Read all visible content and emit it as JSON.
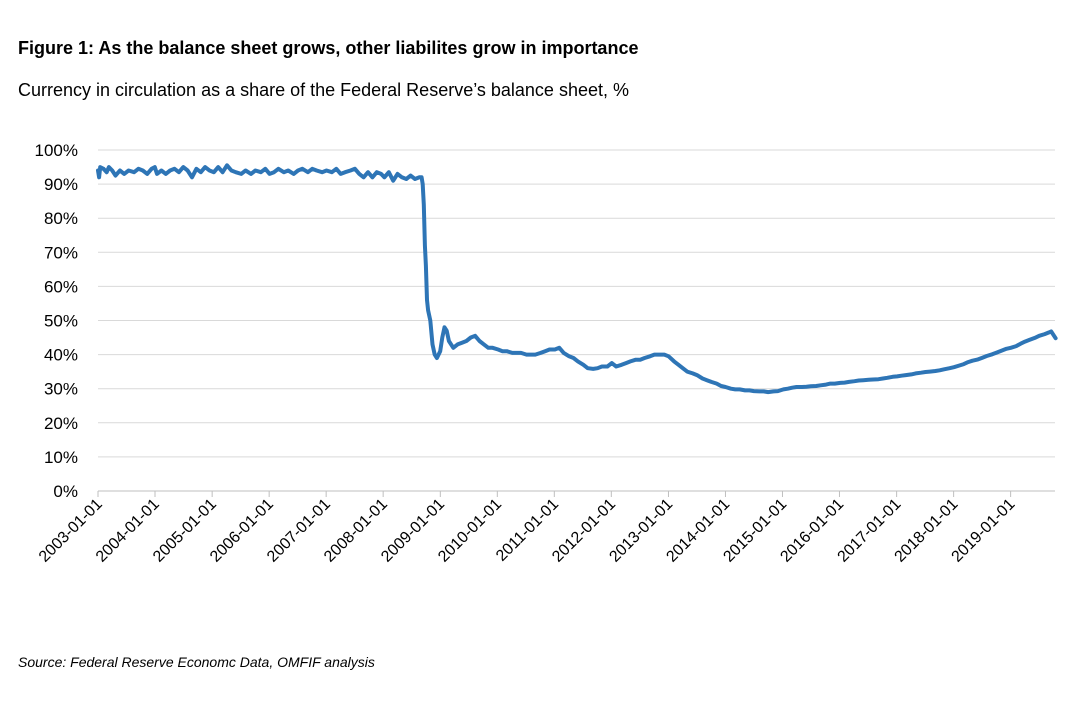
{
  "header": {
    "title": "Figure 1: As the balance sheet grows, other liabilites grow in importance",
    "subtitle": "Currency in circulation as a share of the Federal Reserve’s balance sheet, %"
  },
  "footer": {
    "source": "Source: Federal Reserve Economc Data, OMFIF analysis"
  },
  "chart_data": {
    "type": "line",
    "title": "Figure 1: As the balance sheet grows, other liabilites grow in importance",
    "subtitle": "Currency in circulation as a share of the Federal Reserve’s balance sheet, %",
    "xlabel": "",
    "ylabel": "",
    "x_ticks": [
      "2003-01-01",
      "2004-01-01",
      "2005-01-01",
      "2006-01-01",
      "2007-01-01",
      "2008-01-01",
      "2009-01-01",
      "2010-01-01",
      "2011-01-01",
      "2012-01-01",
      "2013-01-01",
      "2014-01-01",
      "2015-01-01",
      "2016-01-01",
      "2017-01-01",
      "2018-01-01",
      "2019-01-01"
    ],
    "y_ticks": [
      "0%",
      "10%",
      "20%",
      "30%",
      "40%",
      "50%",
      "60%",
      "70%",
      "80%",
      "90%",
      "100%"
    ],
    "ylim": [
      0,
      100
    ],
    "xlim": [
      "2003-01-01",
      "2019-10-16"
    ],
    "grid": true,
    "legend": "none",
    "line_color": "#2e75b6",
    "series": [
      {
        "values": [
          [
            "2003-01-01",
            94
          ],
          [
            "2003-01-08",
            92
          ],
          [
            "2003-01-15",
            95
          ],
          [
            "2003-02-05",
            94.5
          ],
          [
            "2003-02-26",
            93.5
          ],
          [
            "2003-03-12",
            95
          ],
          [
            "2003-04-02",
            94
          ],
          [
            "2003-04-23",
            92.5
          ],
          [
            "2003-05-21",
            94
          ],
          [
            "2003-06-18",
            93
          ],
          [
            "2003-07-16",
            94
          ],
          [
            "2003-08-20",
            93.5
          ],
          [
            "2003-09-17",
            94.5
          ],
          [
            "2003-10-15",
            94
          ],
          [
            "2003-11-12",
            93
          ],
          [
            "2003-12-10",
            94.5
          ],
          [
            "2003-12-31",
            95
          ],
          [
            "2004-01-14",
            93
          ],
          [
            "2004-02-11",
            94
          ],
          [
            "2004-03-10",
            93
          ],
          [
            "2004-04-07",
            94
          ],
          [
            "2004-05-05",
            94.5
          ],
          [
            "2004-06-02",
            93.5
          ],
          [
            "2004-06-30",
            95
          ],
          [
            "2004-07-28",
            94
          ],
          [
            "2004-08-25",
            92
          ],
          [
            "2004-09-22",
            94.5
          ],
          [
            "2004-10-20",
            93.5
          ],
          [
            "2004-11-17",
            95
          ],
          [
            "2004-12-15",
            94
          ],
          [
            "2005-01-12",
            93.5
          ],
          [
            "2005-02-09",
            95
          ],
          [
            "2005-03-09",
            93.5
          ],
          [
            "2005-04-06",
            95.5
          ],
          [
            "2005-05-04",
            94
          ],
          [
            "2005-06-01",
            93.5
          ],
          [
            "2005-07-06",
            93
          ],
          [
            "2005-08-03",
            94
          ],
          [
            "2005-09-07",
            93
          ],
          [
            "2005-10-05",
            94
          ],
          [
            "2005-11-09",
            93.5
          ],
          [
            "2005-12-07",
            94.5
          ],
          [
            "2006-01-04",
            93
          ],
          [
            "2006-02-01",
            93.5
          ],
          [
            "2006-03-01",
            94.5
          ],
          [
            "2006-04-05",
            93.5
          ],
          [
            "2006-05-03",
            94
          ],
          [
            "2006-06-07",
            93
          ],
          [
            "2006-07-05",
            94
          ],
          [
            "2006-08-02",
            94.5
          ],
          [
            "2006-09-06",
            93.5
          ],
          [
            "2006-10-04",
            94.5
          ],
          [
            "2006-11-01",
            94
          ],
          [
            "2006-12-06",
            93.5
          ],
          [
            "2007-01-03",
            94
          ],
          [
            "2007-02-07",
            93.5
          ],
          [
            "2007-03-07",
            94.5
          ],
          [
            "2007-04-04",
            93
          ],
          [
            "2007-05-02",
            93.5
          ],
          [
            "2007-06-06",
            94
          ],
          [
            "2007-07-04",
            94.5
          ],
          [
            "2007-08-01",
            93
          ],
          [
            "2007-08-29",
            92
          ],
          [
            "2007-09-26",
            93.5
          ],
          [
            "2007-10-24",
            92
          ],
          [
            "2007-11-21",
            93.5
          ],
          [
            "2007-12-19",
            93
          ],
          [
            "2008-01-09",
            92
          ],
          [
            "2008-02-06",
            93.5
          ],
          [
            "2008-03-05",
            91
          ],
          [
            "2008-04-02",
            93
          ],
          [
            "2008-04-30",
            92
          ],
          [
            "2008-05-28",
            91.5
          ],
          [
            "2008-06-25",
            92.5
          ],
          [
            "2008-07-23",
            91.5
          ],
          [
            "2008-08-20",
            92
          ],
          [
            "2008-09-03",
            92
          ],
          [
            "2008-09-10",
            90
          ],
          [
            "2008-09-17",
            84
          ],
          [
            "2008-09-24",
            72
          ],
          [
            "2008-10-01",
            66
          ],
          [
            "2008-10-08",
            56
          ],
          [
            "2008-10-15",
            53
          ],
          [
            "2008-10-29",
            50
          ],
          [
            "2008-11-12",
            43
          ],
          [
            "2008-11-26",
            40
          ],
          [
            "2008-12-10",
            39
          ],
          [
            "2008-12-31",
            41
          ],
          [
            "2009-01-14",
            45
          ],
          [
            "2009-01-28",
            48
          ],
          [
            "2009-02-11",
            47
          ],
          [
            "2009-02-25",
            44
          ],
          [
            "2009-03-11",
            43
          ],
          [
            "2009-03-25",
            42
          ],
          [
            "2009-04-22",
            43
          ],
          [
            "2009-05-20",
            43.5
          ],
          [
            "2009-06-17",
            44
          ],
          [
            "2009-07-15",
            45
          ],
          [
            "2009-08-12",
            45.5
          ],
          [
            "2009-09-09",
            44
          ],
          [
            "2009-10-07",
            43
          ],
          [
            "2009-11-04",
            42
          ],
          [
            "2009-12-02",
            42
          ],
          [
            "2010-01-06",
            41.5
          ],
          [
            "2010-02-03",
            41
          ],
          [
            "2010-03-03",
            41
          ],
          [
            "2010-04-07",
            40.5
          ],
          [
            "2010-05-05",
            40.5
          ],
          [
            "2010-06-02",
            40.5
          ],
          [
            "2010-07-07",
            40
          ],
          [
            "2010-08-04",
            40
          ],
          [
            "2010-09-01",
            40
          ],
          [
            "2010-10-06",
            40.5
          ],
          [
            "2010-11-03",
            41
          ],
          [
            "2010-12-01",
            41.5
          ],
          [
            "2011-01-05",
            41.5
          ],
          [
            "2011-02-02",
            42
          ],
          [
            "2011-03-02",
            40.5
          ],
          [
            "2011-04-06",
            39.5
          ],
          [
            "2011-05-04",
            39
          ],
          [
            "2011-06-01",
            38
          ],
          [
            "2011-07-06",
            37
          ],
          [
            "2011-08-03",
            36
          ],
          [
            "2011-09-07",
            35.8
          ],
          [
            "2011-10-05",
            36
          ],
          [
            "2011-11-02",
            36.5
          ],
          [
            "2011-12-07",
            36.5
          ],
          [
            "2012-01-04",
            37.5
          ],
          [
            "2012-02-01",
            36.5
          ],
          [
            "2012-03-07",
            37
          ],
          [
            "2012-04-04",
            37.5
          ],
          [
            "2012-05-02",
            38
          ],
          [
            "2012-06-06",
            38.5
          ],
          [
            "2012-07-04",
            38.5
          ],
          [
            "2012-08-01",
            39
          ],
          [
            "2012-09-05",
            39.5
          ],
          [
            "2012-10-03",
            40
          ],
          [
            "2012-11-07",
            40
          ],
          [
            "2012-12-05",
            40
          ],
          [
            "2013-01-02",
            39.5
          ],
          [
            "2013-02-06",
            38
          ],
          [
            "2013-03-06",
            37
          ],
          [
            "2013-04-03",
            36
          ],
          [
            "2013-05-01",
            35
          ],
          [
            "2013-06-05",
            34.5
          ],
          [
            "2013-07-03",
            34
          ],
          [
            "2013-08-07",
            33
          ],
          [
            "2013-09-04",
            32.5
          ],
          [
            "2013-10-02",
            32
          ],
          [
            "2013-11-06",
            31.5
          ],
          [
            "2013-12-04",
            30.8
          ],
          [
            "2014-01-01",
            30.5
          ],
          [
            "2014-02-05",
            30
          ],
          [
            "2014-03-05",
            29.8
          ],
          [
            "2014-04-02",
            29.8
          ],
          [
            "2014-05-07",
            29.5
          ],
          [
            "2014-06-04",
            29.5
          ],
          [
            "2014-07-02",
            29.3
          ],
          [
            "2014-08-06",
            29.2
          ],
          [
            "2014-09-03",
            29.2
          ],
          [
            "2014-10-01",
            29
          ],
          [
            "2014-11-05",
            29.2
          ],
          [
            "2014-12-03",
            29.3
          ],
          [
            "2015-01-07",
            29.8
          ],
          [
            "2015-02-04",
            30
          ],
          [
            "2015-03-04",
            30.3
          ],
          [
            "2015-04-01",
            30.5
          ],
          [
            "2015-05-06",
            30.5
          ],
          [
            "2015-06-03",
            30.6
          ],
          [
            "2015-07-01",
            30.7
          ],
          [
            "2015-08-05",
            30.8
          ],
          [
            "2015-09-02",
            31
          ],
          [
            "2015-10-07",
            31.2
          ],
          [
            "2015-11-04",
            31.5
          ],
          [
            "2015-12-02",
            31.5
          ],
          [
            "2016-01-06",
            31.7
          ],
          [
            "2016-02-03",
            31.8
          ],
          [
            "2016-03-02",
            32
          ],
          [
            "2016-04-06",
            32.2
          ],
          [
            "2016-05-04",
            32.4
          ],
          [
            "2016-06-01",
            32.5
          ],
          [
            "2016-07-06",
            32.6
          ],
          [
            "2016-08-03",
            32.7
          ],
          [
            "2016-09-07",
            32.8
          ],
          [
            "2016-10-05",
            33
          ],
          [
            "2016-11-02",
            33.2
          ],
          [
            "2016-12-07",
            33.5
          ],
          [
            "2017-01-04",
            33.6
          ],
          [
            "2017-02-01",
            33.8
          ],
          [
            "2017-03-01",
            34
          ],
          [
            "2017-04-05",
            34.2
          ],
          [
            "2017-05-03",
            34.5
          ],
          [
            "2017-06-07",
            34.7
          ],
          [
            "2017-07-05",
            34.9
          ],
          [
            "2017-08-02",
            35
          ],
          [
            "2017-09-06",
            35.2
          ],
          [
            "2017-10-04",
            35.4
          ],
          [
            "2017-11-01",
            35.7
          ],
          [
            "2017-12-06",
            36
          ],
          [
            "2018-01-03",
            36.3
          ],
          [
            "2018-02-07",
            36.8
          ],
          [
            "2018-03-07",
            37.2
          ],
          [
            "2018-04-04",
            37.8
          ],
          [
            "2018-05-02",
            38.2
          ],
          [
            "2018-06-06",
            38.6
          ],
          [
            "2018-07-04",
            39.1
          ],
          [
            "2018-08-01",
            39.6
          ],
          [
            "2018-09-05",
            40.1
          ],
          [
            "2018-10-03",
            40.6
          ],
          [
            "2018-11-07",
            41.2
          ],
          [
            "2018-12-05",
            41.7
          ],
          [
            "2019-01-02",
            42
          ],
          [
            "2019-02-06",
            42.5
          ],
          [
            "2019-03-06",
            43.2
          ],
          [
            "2019-04-03",
            43.8
          ],
          [
            "2019-05-01",
            44.3
          ],
          [
            "2019-06-05",
            44.9
          ],
          [
            "2019-07-03",
            45.5
          ],
          [
            "2019-08-07",
            46
          ],
          [
            "2019-09-04",
            46.5
          ],
          [
            "2019-09-18",
            46.8
          ],
          [
            "2019-10-02",
            45.8
          ],
          [
            "2019-10-16",
            44.8
          ]
        ]
      }
    ]
  }
}
